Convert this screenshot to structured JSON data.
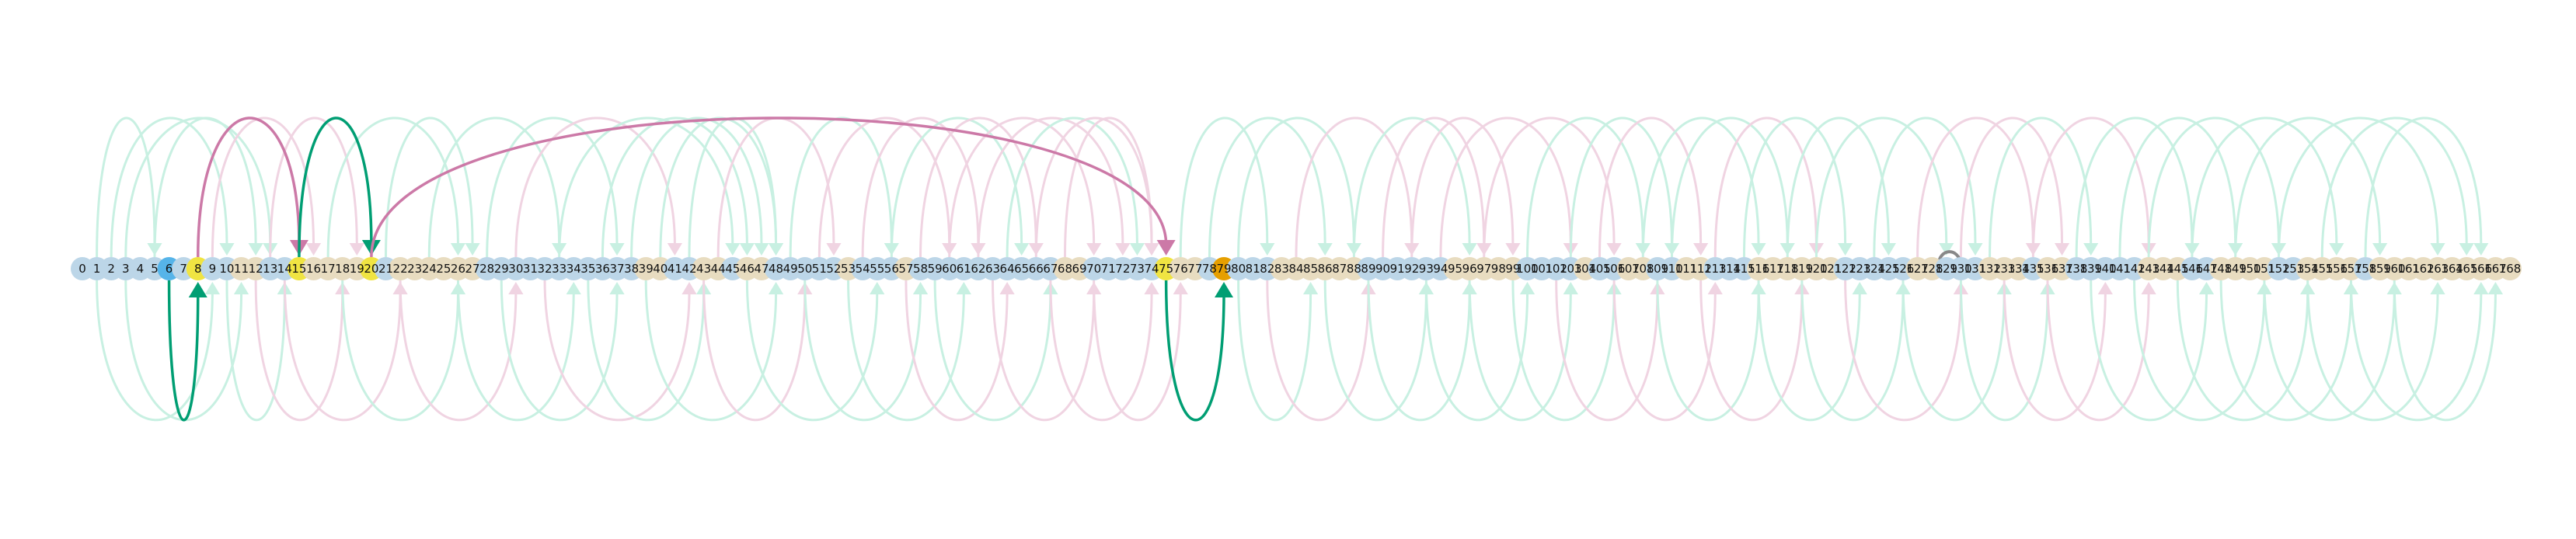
{
  "node_count": 169,
  "highlight": {
    "blue_nodes": [
      6
    ],
    "yellow_nodes": [
      8,
      15,
      20,
      75
    ],
    "orange_nodes": [
      79
    ],
    "self_loop_node": 129
  },
  "colors": {
    "node_default": "#bcd6e8",
    "node_tan": "#e8dcc0",
    "node_blue": "#56b4e9",
    "node_yellow": "#f0e442",
    "node_orange": "#e69f00",
    "arc_green": "#009e73",
    "arc_green_light": "#c8f0e2",
    "arc_pink": "#cc79a7",
    "arc_pink_light": "#f0d4e2",
    "self_loop": "#888888"
  },
  "tan_nodes": [
    11,
    12,
    16,
    17,
    18,
    19,
    22,
    23,
    24,
    25,
    26,
    27,
    39,
    40,
    43,
    44,
    46,
    47,
    53,
    57,
    68,
    69,
    76,
    77,
    83,
    84,
    85,
    86,
    87,
    88,
    95,
    96,
    97,
    98,
    99,
    104,
    107,
    108,
    111,
    112,
    116,
    117,
    118,
    119,
    120,
    121,
    127,
    128,
    132,
    133,
    134,
    136,
    137,
    143,
    144,
    145,
    148,
    149,
    150,
    151,
    154,
    155,
    156,
    157,
    159,
    160,
    161,
    162,
    163,
    164,
    165,
    166,
    167,
    168
  ],
  "highlighted_arcs": [
    {
      "from": 8,
      "to": 15,
      "side": "top",
      "color": "pink"
    },
    {
      "from": 15,
      "to": 20,
      "side": "top",
      "color": "green"
    },
    {
      "from": 20,
      "to": 75,
      "side": "top",
      "color": "pink"
    },
    {
      "from": 6,
      "to": 8,
      "side": "bottom",
      "color": "green"
    },
    {
      "from": 75,
      "to": 79,
      "side": "bottom",
      "color": "green"
    }
  ],
  "faint_arcs": [
    {
      "from": 1,
      "to": 5,
      "side": "top",
      "color": "green"
    },
    {
      "from": 2,
      "to": 10,
      "side": "top",
      "color": "green"
    },
    {
      "from": 3,
      "to": 13,
      "side": "top",
      "color": "green"
    },
    {
      "from": 5,
      "to": 12,
      "side": "top",
      "color": "green"
    },
    {
      "from": 9,
      "to": 16,
      "side": "top",
      "color": "pink"
    },
    {
      "from": 13,
      "to": 19,
      "side": "top",
      "color": "pink"
    },
    {
      "from": 17,
      "to": 26,
      "side": "top",
      "color": "green"
    },
    {
      "from": 21,
      "to": 27,
      "side": "top",
      "color": "green"
    },
    {
      "from": 24,
      "to": 33,
      "side": "top",
      "color": "green"
    },
    {
      "from": 28,
      "to": 37,
      "side": "top",
      "color": "green"
    },
    {
      "from": 30,
      "to": 41,
      "side": "top",
      "color": "pink"
    },
    {
      "from": 33,
      "to": 45,
      "side": "top",
      "color": "green"
    },
    {
      "from": 36,
      "to": 46,
      "side": "top",
      "color": "green"
    },
    {
      "from": 38,
      "to": 47,
      "side": "top",
      "color": "green"
    },
    {
      "from": 40,
      "to": 48,
      "side": "top",
      "color": "green"
    },
    {
      "from": 42,
      "to": 48,
      "side": "top",
      "color": "green"
    },
    {
      "from": 44,
      "to": 52,
      "side": "top",
      "color": "pink"
    },
    {
      "from": 49,
      "to": 56,
      "side": "top",
      "color": "green"
    },
    {
      "from": 51,
      "to": 60,
      "side": "top",
      "color": "pink"
    },
    {
      "from": 54,
      "to": 62,
      "side": "top",
      "color": "pink"
    },
    {
      "from": 56,
      "to": 65,
      "side": "top",
      "color": "green"
    },
    {
      "from": 58,
      "to": 66,
      "side": "top",
      "color": "pink"
    },
    {
      "from": 60,
      "to": 70,
      "side": "top",
      "color": "pink"
    },
    {
      "from": 62,
      "to": 72,
      "side": "top",
      "color": "pink"
    },
    {
      "from": 64,
      "to": 73,
      "side": "top",
      "color": "green"
    },
    {
      "from": 66,
      "to": 74,
      "side": "top",
      "color": "pink"
    },
    {
      "from": 68,
      "to": 74,
      "side": "top",
      "color": "pink"
    },
    {
      "from": 76,
      "to": 82,
      "side": "top",
      "color": "green"
    },
    {
      "from": 78,
      "to": 86,
      "side": "top",
      "color": "green"
    },
    {
      "from": 80,
      "to": 88,
      "side": "top",
      "color": "green"
    },
    {
      "from": 84,
      "to": 92,
      "side": "top",
      "color": "pink"
    },
    {
      "from": 88,
      "to": 96,
      "side": "top",
      "color": "green"
    },
    {
      "from": 90,
      "to": 97,
      "side": "top",
      "color": "pink"
    },
    {
      "from": 92,
      "to": 99,
      "side": "top",
      "color": "pink"
    },
    {
      "from": 94,
      "to": 103,
      "side": "top",
      "color": "pink"
    },
    {
      "from": 97,
      "to": 106,
      "side": "top",
      "color": "pink"
    },
    {
      "from": 100,
      "to": 108,
      "side": "top",
      "color": "green"
    },
    {
      "from": 103,
      "to": 110,
      "side": "top",
      "color": "green"
    },
    {
      "from": 105,
      "to": 112,
      "side": "top",
      "color": "pink"
    },
    {
      "from": 108,
      "to": 116,
      "side": "top",
      "color": "green"
    },
    {
      "from": 110,
      "to": 118,
      "side": "top",
      "color": "green"
    },
    {
      "from": 113,
      "to": 120,
      "side": "top",
      "color": "pink"
    },
    {
      "from": 115,
      "to": 122,
      "side": "top",
      "color": "green"
    },
    {
      "from": 118,
      "to": 125,
      "side": "top",
      "color": "green"
    },
    {
      "from": 120,
      "to": 129,
      "side": "top",
      "color": "green"
    },
    {
      "from": 124,
      "to": 131,
      "side": "top",
      "color": "green"
    },
    {
      "from": 127,
      "to": 135,
      "side": "top",
      "color": "pink"
    },
    {
      "from": 130,
      "to": 137,
      "side": "top",
      "color": "pink"
    },
    {
      "from": 132,
      "to": 139,
      "side": "top",
      "color": "green"
    },
    {
      "from": 135,
      "to": 143,
      "side": "top",
      "color": "pink"
    },
    {
      "from": 138,
      "to": 146,
      "side": "top",
      "color": "green"
    },
    {
      "from": 141,
      "to": 149,
      "side": "top",
      "color": "green"
    },
    {
      "from": 143,
      "to": 152,
      "side": "top",
      "color": "green"
    },
    {
      "from": 146,
      "to": 156,
      "side": "top",
      "color": "green"
    },
    {
      "from": 149,
      "to": 159,
      "side": "top",
      "color": "green"
    },
    {
      "from": 152,
      "to": 163,
      "side": "top",
      "color": "green"
    },
    {
      "from": 155,
      "to": 165,
      "side": "top",
      "color": "green"
    },
    {
      "from": 158,
      "to": 166,
      "side": "top",
      "color": "green"
    },
    {
      "from": 1,
      "to": 9,
      "side": "bottom",
      "color": "green"
    },
    {
      "from": 3,
      "to": 11,
      "side": "bottom",
      "color": "green"
    },
    {
      "from": 10,
      "to": 14,
      "side": "bottom",
      "color": "green"
    },
    {
      "from": 12,
      "to": 18,
      "side": "bottom",
      "color": "pink"
    },
    {
      "from": 14,
      "to": 22,
      "side": "bottom",
      "color": "pink"
    },
    {
      "from": 18,
      "to": 26,
      "side": "bottom",
      "color": "green"
    },
    {
      "from": 22,
      "to": 30,
      "side": "bottom",
      "color": "pink"
    },
    {
      "from": 26,
      "to": 34,
      "side": "bottom",
      "color": "green"
    },
    {
      "from": 29,
      "to": 37,
      "side": "bottom",
      "color": "green"
    },
    {
      "from": 32,
      "to": 42,
      "side": "bottom",
      "color": "pink"
    },
    {
      "from": 35,
      "to": 43,
      "side": "bottom",
      "color": "green"
    },
    {
      "from": 39,
      "to": 48,
      "side": "bottom",
      "color": "green"
    },
    {
      "from": 43,
      "to": 50,
      "side": "bottom",
      "color": "pink"
    },
    {
      "from": 46,
      "to": 55,
      "side": "bottom",
      "color": "green"
    },
    {
      "from": 50,
      "to": 58,
      "side": "bottom",
      "color": "green"
    },
    {
      "from": 53,
      "to": 61,
      "side": "bottom",
      "color": "green"
    },
    {
      "from": 57,
      "to": 64,
      "side": "bottom",
      "color": "pink"
    },
    {
      "from": 59,
      "to": 67,
      "side": "bottom",
      "color": "green"
    },
    {
      "from": 63,
      "to": 70,
      "side": "bottom",
      "color": "pink"
    },
    {
      "from": 67,
      "to": 74,
      "side": "bottom",
      "color": "pink"
    },
    {
      "from": 70,
      "to": 76,
      "side": "bottom",
      "color": "pink"
    },
    {
      "from": 80,
      "to": 85,
      "side": "bottom",
      "color": "green"
    },
    {
      "from": 82,
      "to": 89,
      "side": "bottom",
      "color": "pink"
    },
    {
      "from": 86,
      "to": 93,
      "side": "bottom",
      "color": "green"
    },
    {
      "from": 89,
      "to": 96,
      "side": "bottom",
      "color": "green"
    },
    {
      "from": 93,
      "to": 100,
      "side": "bottom",
      "color": "green"
    },
    {
      "from": 96,
      "to": 103,
      "side": "bottom",
      "color": "green"
    },
    {
      "from": 99,
      "to": 106,
      "side": "bottom",
      "color": "green"
    },
    {
      "from": 102,
      "to": 109,
      "side": "bottom",
      "color": "pink"
    },
    {
      "from": 106,
      "to": 113,
      "side": "bottom",
      "color": "pink"
    },
    {
      "from": 109,
      "to": 116,
      "side": "bottom",
      "color": "green"
    },
    {
      "from": 112,
      "to": 119,
      "side": "bottom",
      "color": "pink"
    },
    {
      "from": 116,
      "to": 123,
      "side": "bottom",
      "color": "green"
    },
    {
      "from": 119,
      "to": 126,
      "side": "bottom",
      "color": "green"
    },
    {
      "from": 122,
      "to": 130,
      "side": "bottom",
      "color": "pink"
    },
    {
      "from": 126,
      "to": 133,
      "side": "bottom",
      "color": "green"
    },
    {
      "from": 130,
      "to": 136,
      "side": "bottom",
      "color": "green"
    },
    {
      "from": 133,
      "to": 140,
      "side": "bottom",
      "color": "pink"
    },
    {
      "from": 136,
      "to": 143,
      "side": "bottom",
      "color": "pink"
    },
    {
      "from": 139,
      "to": 147,
      "side": "bottom",
      "color": "green"
    },
    {
      "from": 142,
      "to": 151,
      "side": "bottom",
      "color": "green"
    },
    {
      "from": 145,
      "to": 154,
      "side": "bottom",
      "color": "green"
    },
    {
      "from": 148,
      "to": 157,
      "side": "bottom",
      "color": "green"
    },
    {
      "from": 151,
      "to": 160,
      "side": "bottom",
      "color": "green"
    },
    {
      "from": 154,
      "to": 163,
      "side": "bottom",
      "color": "green"
    },
    {
      "from": 157,
      "to": 166,
      "side": "bottom",
      "color": "green"
    },
    {
      "from": 160,
      "to": 167,
      "side": "bottom",
      "color": "green"
    }
  ]
}
